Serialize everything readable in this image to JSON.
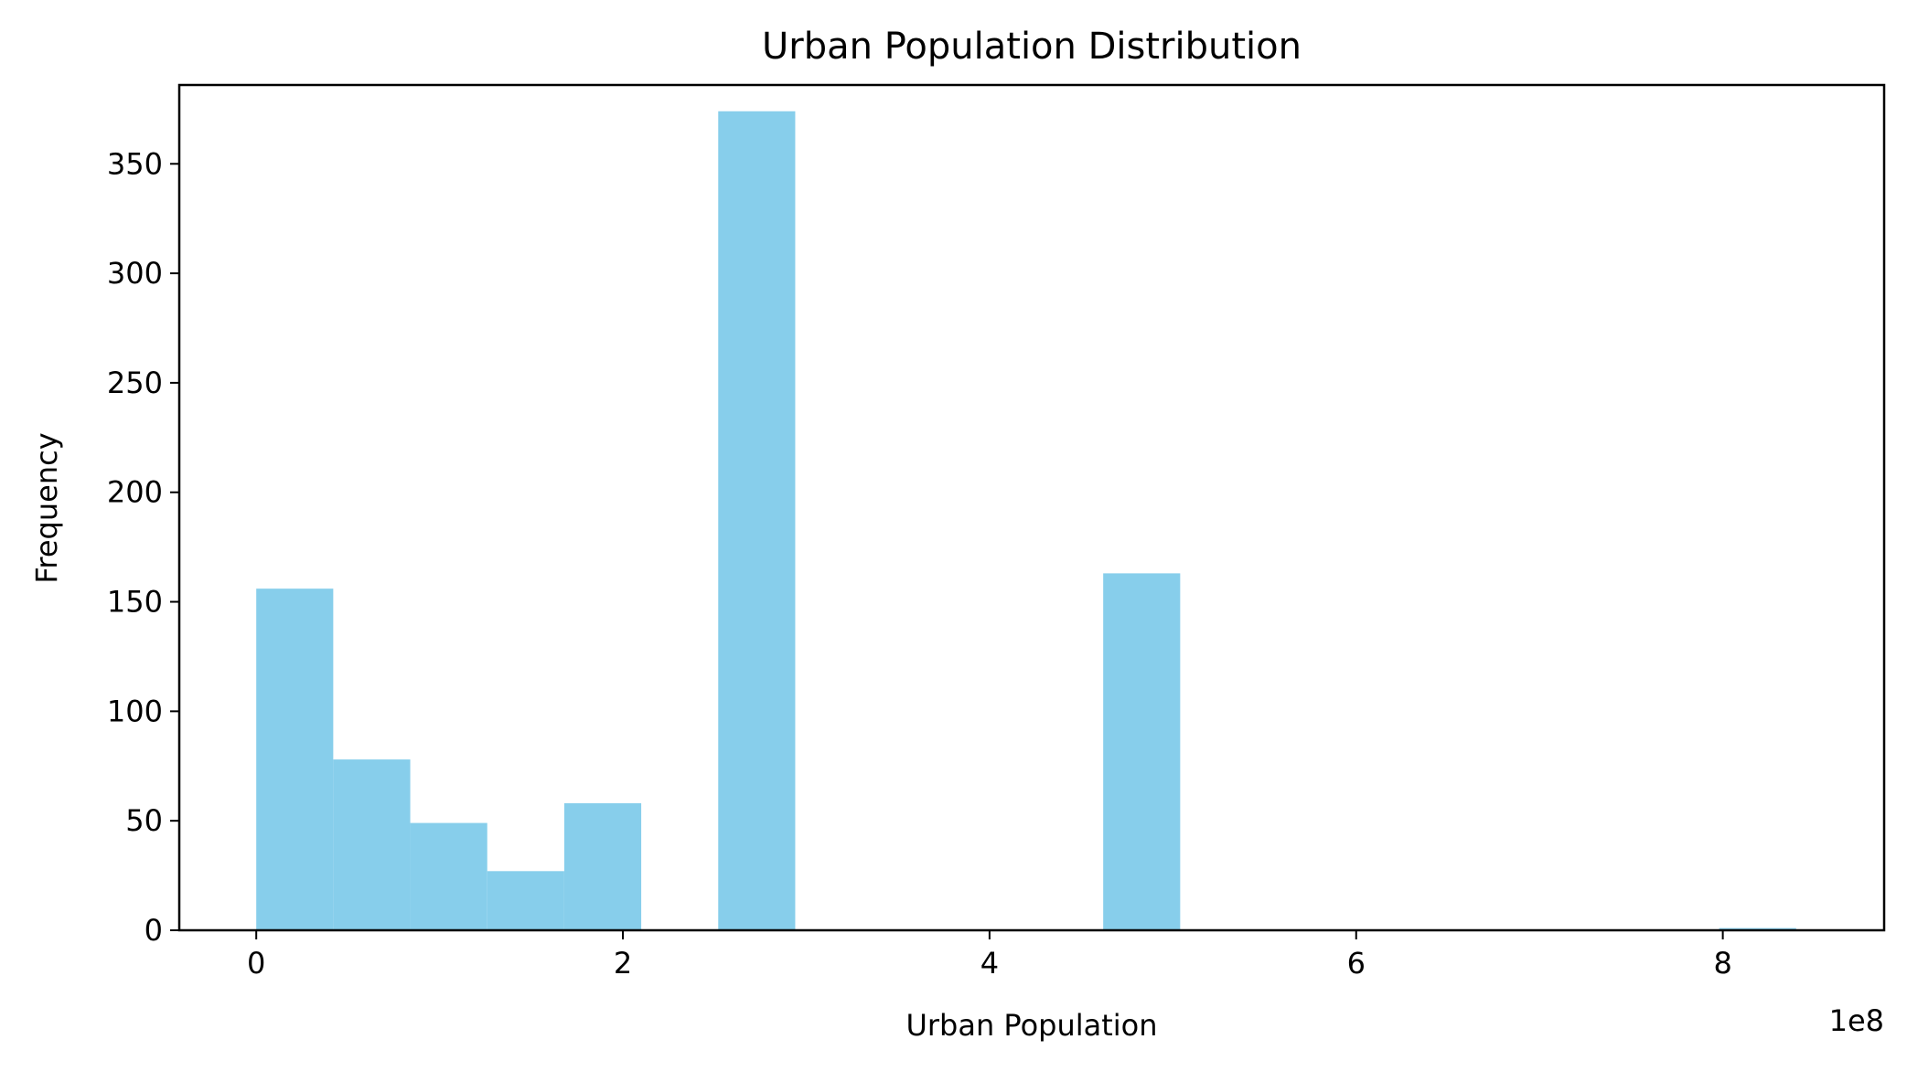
{
  "chart_data": {
    "type": "histogram",
    "title": "Urban Population Distribution",
    "xlabel": "Urban Population",
    "ylabel": "Frequency",
    "x_offset_label": "1e8",
    "xlim": [
      -0.42,
      8.88
    ],
    "ylim": [
      0,
      386
    ],
    "bin_width": 0.42,
    "x_scale": 100000000,
    "grid": false,
    "bins": [
      {
        "start": 0.0,
        "end": 0.42,
        "count": 156
      },
      {
        "start": 0.42,
        "end": 0.84,
        "count": 78
      },
      {
        "start": 0.84,
        "end": 1.26,
        "count": 49
      },
      {
        "start": 1.26,
        "end": 1.68,
        "count": 27
      },
      {
        "start": 1.68,
        "end": 2.1,
        "count": 58
      },
      {
        "start": 2.1,
        "end": 2.52,
        "count": 0
      },
      {
        "start": 2.52,
        "end": 2.94,
        "count": 374
      },
      {
        "start": 2.94,
        "end": 3.36,
        "count": 0
      },
      {
        "start": 3.36,
        "end": 3.78,
        "count": 0
      },
      {
        "start": 3.78,
        "end": 4.2,
        "count": 0
      },
      {
        "start": 4.2,
        "end": 4.62,
        "count": 0
      },
      {
        "start": 4.62,
        "end": 5.04,
        "count": 163
      },
      {
        "start": 5.04,
        "end": 5.46,
        "count": 0
      },
      {
        "start": 5.46,
        "end": 5.88,
        "count": 0
      },
      {
        "start": 5.88,
        "end": 6.3,
        "count": 0
      },
      {
        "start": 6.3,
        "end": 6.72,
        "count": 0
      },
      {
        "start": 6.72,
        "end": 7.14,
        "count": 0
      },
      {
        "start": 7.14,
        "end": 7.56,
        "count": 0
      },
      {
        "start": 7.56,
        "end": 7.98,
        "count": 0
      },
      {
        "start": 7.98,
        "end": 8.4,
        "count": 1
      }
    ],
    "xticks": [
      0,
      2,
      4,
      6,
      8
    ],
    "xtick_labels": [
      "0",
      "2",
      "4",
      "6",
      "8"
    ],
    "yticks": [
      0,
      50,
      100,
      150,
      200,
      250,
      300,
      350
    ],
    "ytick_labels": [
      "0",
      "50",
      "100",
      "150",
      "200",
      "250",
      "300",
      "350"
    ],
    "bar_color": "#87CEEB"
  }
}
